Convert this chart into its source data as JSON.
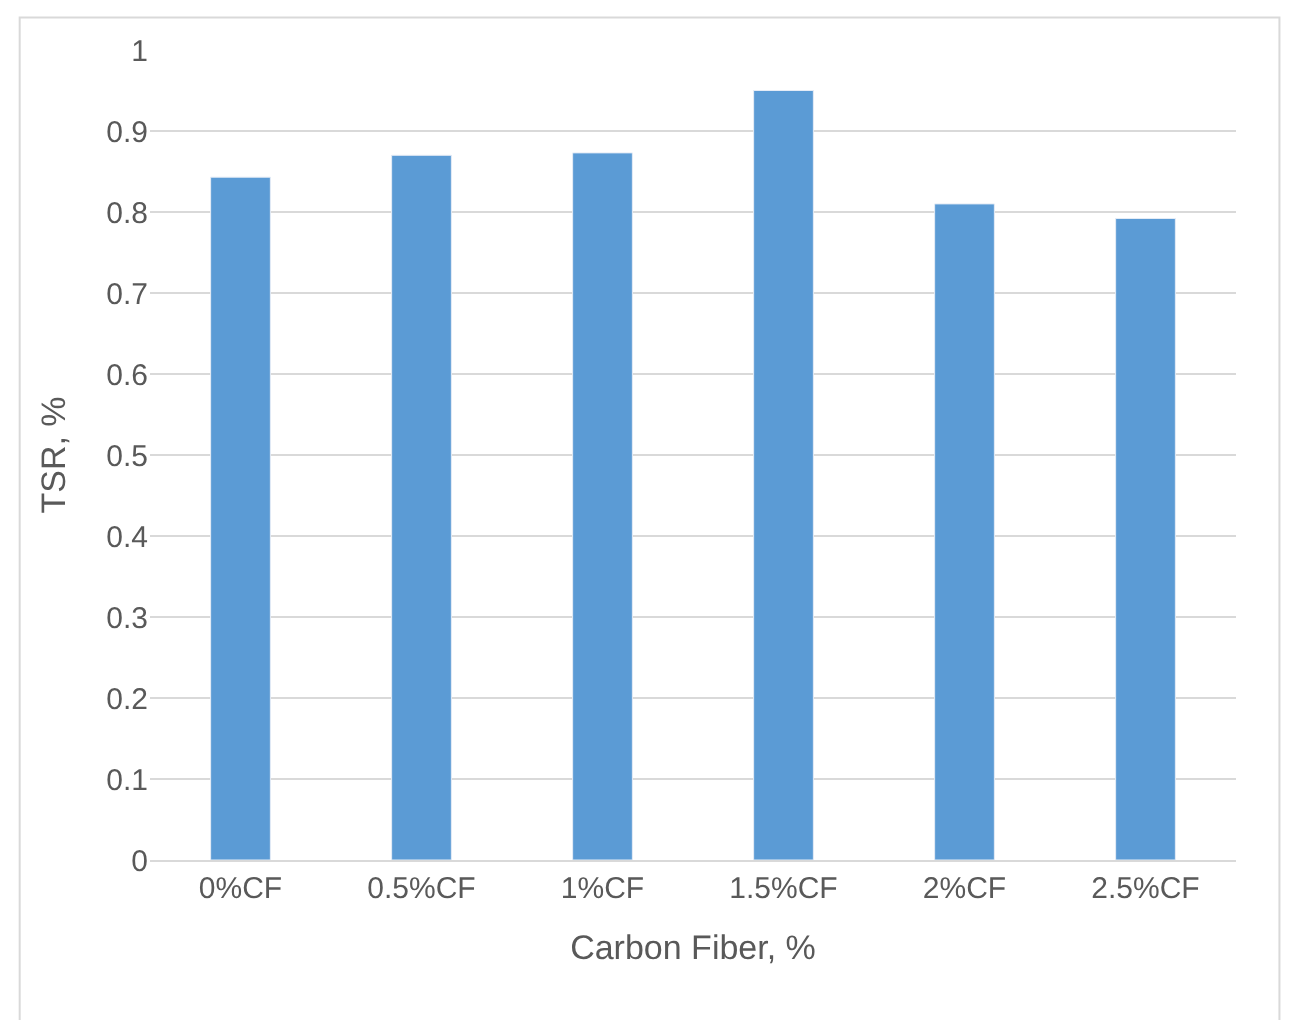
{
  "chart_data": {
    "type": "bar",
    "xlabel": "Carbon Fiber, %",
    "ylabel": "TSR, %",
    "categories": [
      "0%CF",
      "0.5%CF",
      "1%CF",
      "1.5%CF",
      "2%CF",
      "2.5%CF"
    ],
    "values": [
      0.843,
      0.87,
      0.873,
      0.95,
      0.81,
      0.792
    ],
    "color": "#5b9bd5",
    "ylim": [
      0,
      1
    ],
    "yticks": [
      0,
      0.1,
      0.2,
      0.3,
      0.4,
      0.5,
      0.6,
      0.7,
      0.8,
      0.9,
      1
    ],
    "grid": "y"
  }
}
